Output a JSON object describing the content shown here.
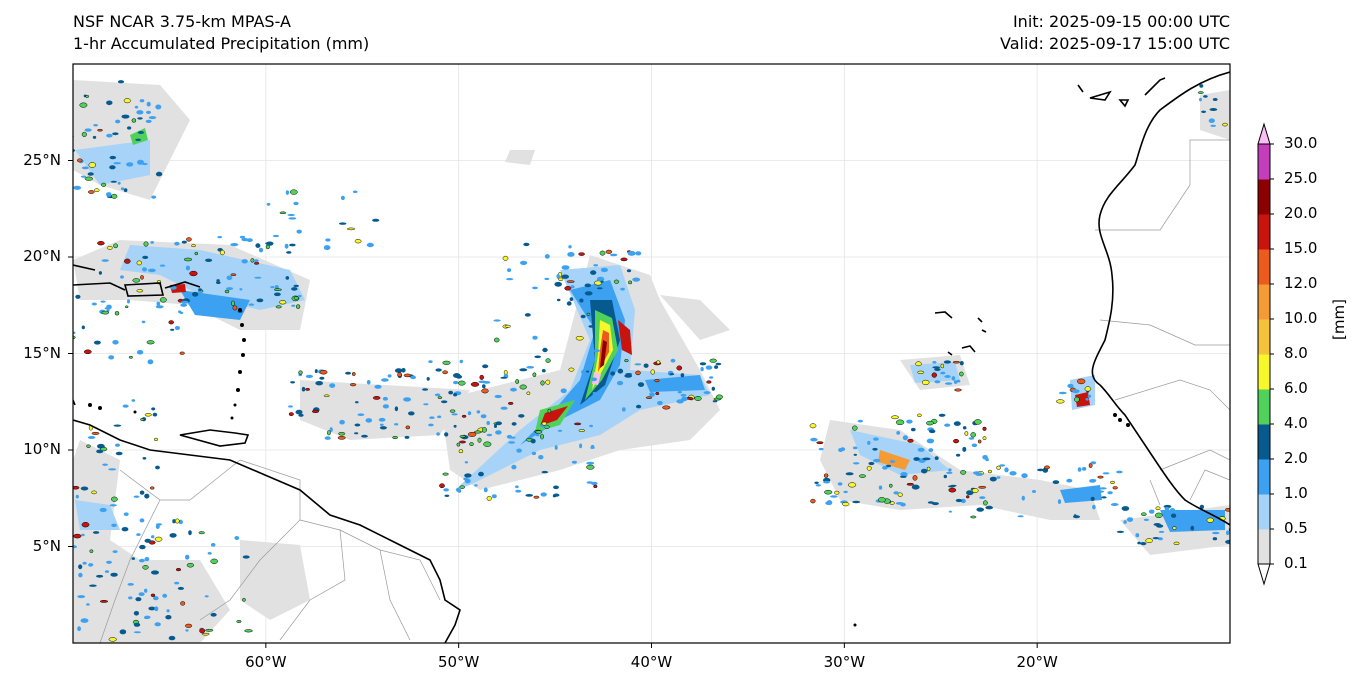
{
  "header": {
    "model": "NSF NCAR 3.75-km MPAS-A",
    "field": "1-hr Accumulated Precipitation (mm)",
    "init": "Init: 2025-09-15 00:00 UTC",
    "valid": "Valid: 2025-09-17 15:00 UTC"
  },
  "map": {
    "extent": {
      "lon": [
        -70,
        -10
      ],
      "lat": [
        0,
        30
      ]
    },
    "lat_ticks": [
      {
        "value": 25,
        "label": "25°N"
      },
      {
        "value": 20,
        "label": "20°N"
      },
      {
        "value": 15,
        "label": "15°N"
      },
      {
        "value": 10,
        "label": "10°N"
      },
      {
        "value": 5,
        "label": "5°N"
      }
    ],
    "lon_ticks": [
      {
        "value": -60,
        "label": "60°W"
      },
      {
        "value": -50,
        "label": "50°W"
      },
      {
        "value": -40,
        "label": "40°W"
      },
      {
        "value": -30,
        "label": "30°W"
      },
      {
        "value": -20,
        "label": "20°W"
      }
    ],
    "colors": {
      "coast": "#000000",
      "border": "#9a9a9a",
      "grid": "#e4e4e4"
    }
  },
  "colorbar": {
    "unit": "[mm]",
    "levels": [
      "0.1",
      "0.5",
      "1.0",
      "2.0",
      "4.0",
      "6.0",
      "8.0",
      "10.0",
      "12.0",
      "15.0",
      "20.0",
      "25.0",
      "30.0"
    ],
    "colors": [
      "#e1e1e1",
      "#a6d3f7",
      "#3da1f2",
      "#065a8d",
      "#50d25a",
      "#f7f72a",
      "#f5c23b",
      "#f59b35",
      "#ec5a1d",
      "#c8140d",
      "#8d0000",
      "#c43ebc",
      "#fbbdf4"
    ]
  }
}
